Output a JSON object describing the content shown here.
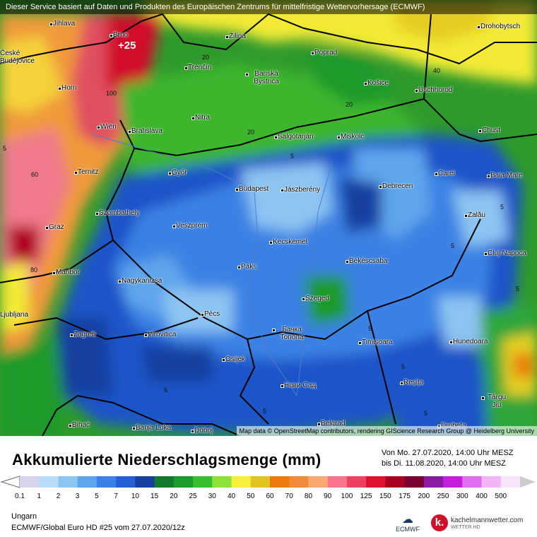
{
  "header": {
    "disclaimer": "Dieser Service basiert auf Daten und Produkten des Europäischen Zentrums für mittelfristige Wettervorhersage (ECMWF)"
  },
  "map": {
    "attribution": "Map data © OpenStreetMap contributors, rendering GIScience Research Group @ Heidelberg University",
    "highlight_label": "+25",
    "cities": [
      "Jihlava",
      "Brno",
      "Žilina",
      "Drohobytsch",
      "Poprad",
      "České Budějovice",
      "Trenčín",
      "Banská Bystrica",
      "Košice",
      "Horn",
      "Uschhorod",
      "Nitra",
      "Wien",
      "Bratislava",
      "Salgótarján",
      "Miskolc",
      "Chust",
      "Ternitz",
      "Győr",
      "Carei",
      "Baia Mare",
      "Budapest",
      "Jászberény",
      "Debrecen",
      "Szombathely",
      "Zalău",
      "Graz",
      "Veszprém",
      "Kecskemét",
      "Cluj-Napoca",
      "Paks",
      "Békéscsaba",
      "Maribor",
      "Nagykanizsa",
      "Szeged",
      "Ljubljana",
      "Pécs",
      "Zagreb",
      "Virovitica",
      "Бачка Топола",
      "Timișoara",
      "Hunedoara",
      "Osijek",
      "Нови Сад",
      "Reșița",
      "Târgu Jiu",
      "Bihać",
      "Banja Luka",
      "Doboj",
      "Belgrad",
      "Drobeta"
    ],
    "isolines": [
      "20",
      "20",
      "40",
      "100",
      "60",
      "20",
      "5",
      "80",
      "5",
      "5",
      "5",
      "5",
      "5",
      "5",
      "5",
      "5",
      "5"
    ]
  },
  "legend": {
    "title": "Akkumulierte Niederschlagsmenge (mm)",
    "period_from": "Von Mo. 27.07.2020, 14:00 Uhr MESZ",
    "period_to": "bis Di. 11.08.2020, 14:00 Uhr MESZ",
    "scale_values": [
      "0.1",
      "1",
      "2",
      "3",
      "5",
      "7",
      "10",
      "15",
      "20",
      "25",
      "30",
      "40",
      "50",
      "60",
      "70",
      "80",
      "90",
      "100",
      "125",
      "150",
      "175",
      "200",
      "250",
      "300",
      "400",
      "500"
    ],
    "scale_colors": [
      "#d8d3ec",
      "#b9dcf7",
      "#8cc4f2",
      "#5ea6ec",
      "#3b82e4",
      "#2460d2",
      "#163fa0",
      "#117a2c",
      "#1a9a2c",
      "#35be2f",
      "#8ee03a",
      "#f6f03a",
      "#e2c421",
      "#e97a10",
      "#f28c3c",
      "#f8a870",
      "#f7768c",
      "#f04060",
      "#e01030",
      "#a80020",
      "#7a0030",
      "#8a1aa0",
      "#c020d8",
      "#e06ef0",
      "#f2b6f8",
      "#f7e6f9",
      "#cccccc"
    ]
  },
  "footer": {
    "region": "Ungarn",
    "model": "ECMWF/Global Euro HD #25 vom  27.07.2020/12z",
    "ecmwf_label": "ECMWF",
    "brand_name": "kachelmannwetter.com",
    "brand_sub": "WETTER HD",
    "brand_glyph": "k."
  }
}
